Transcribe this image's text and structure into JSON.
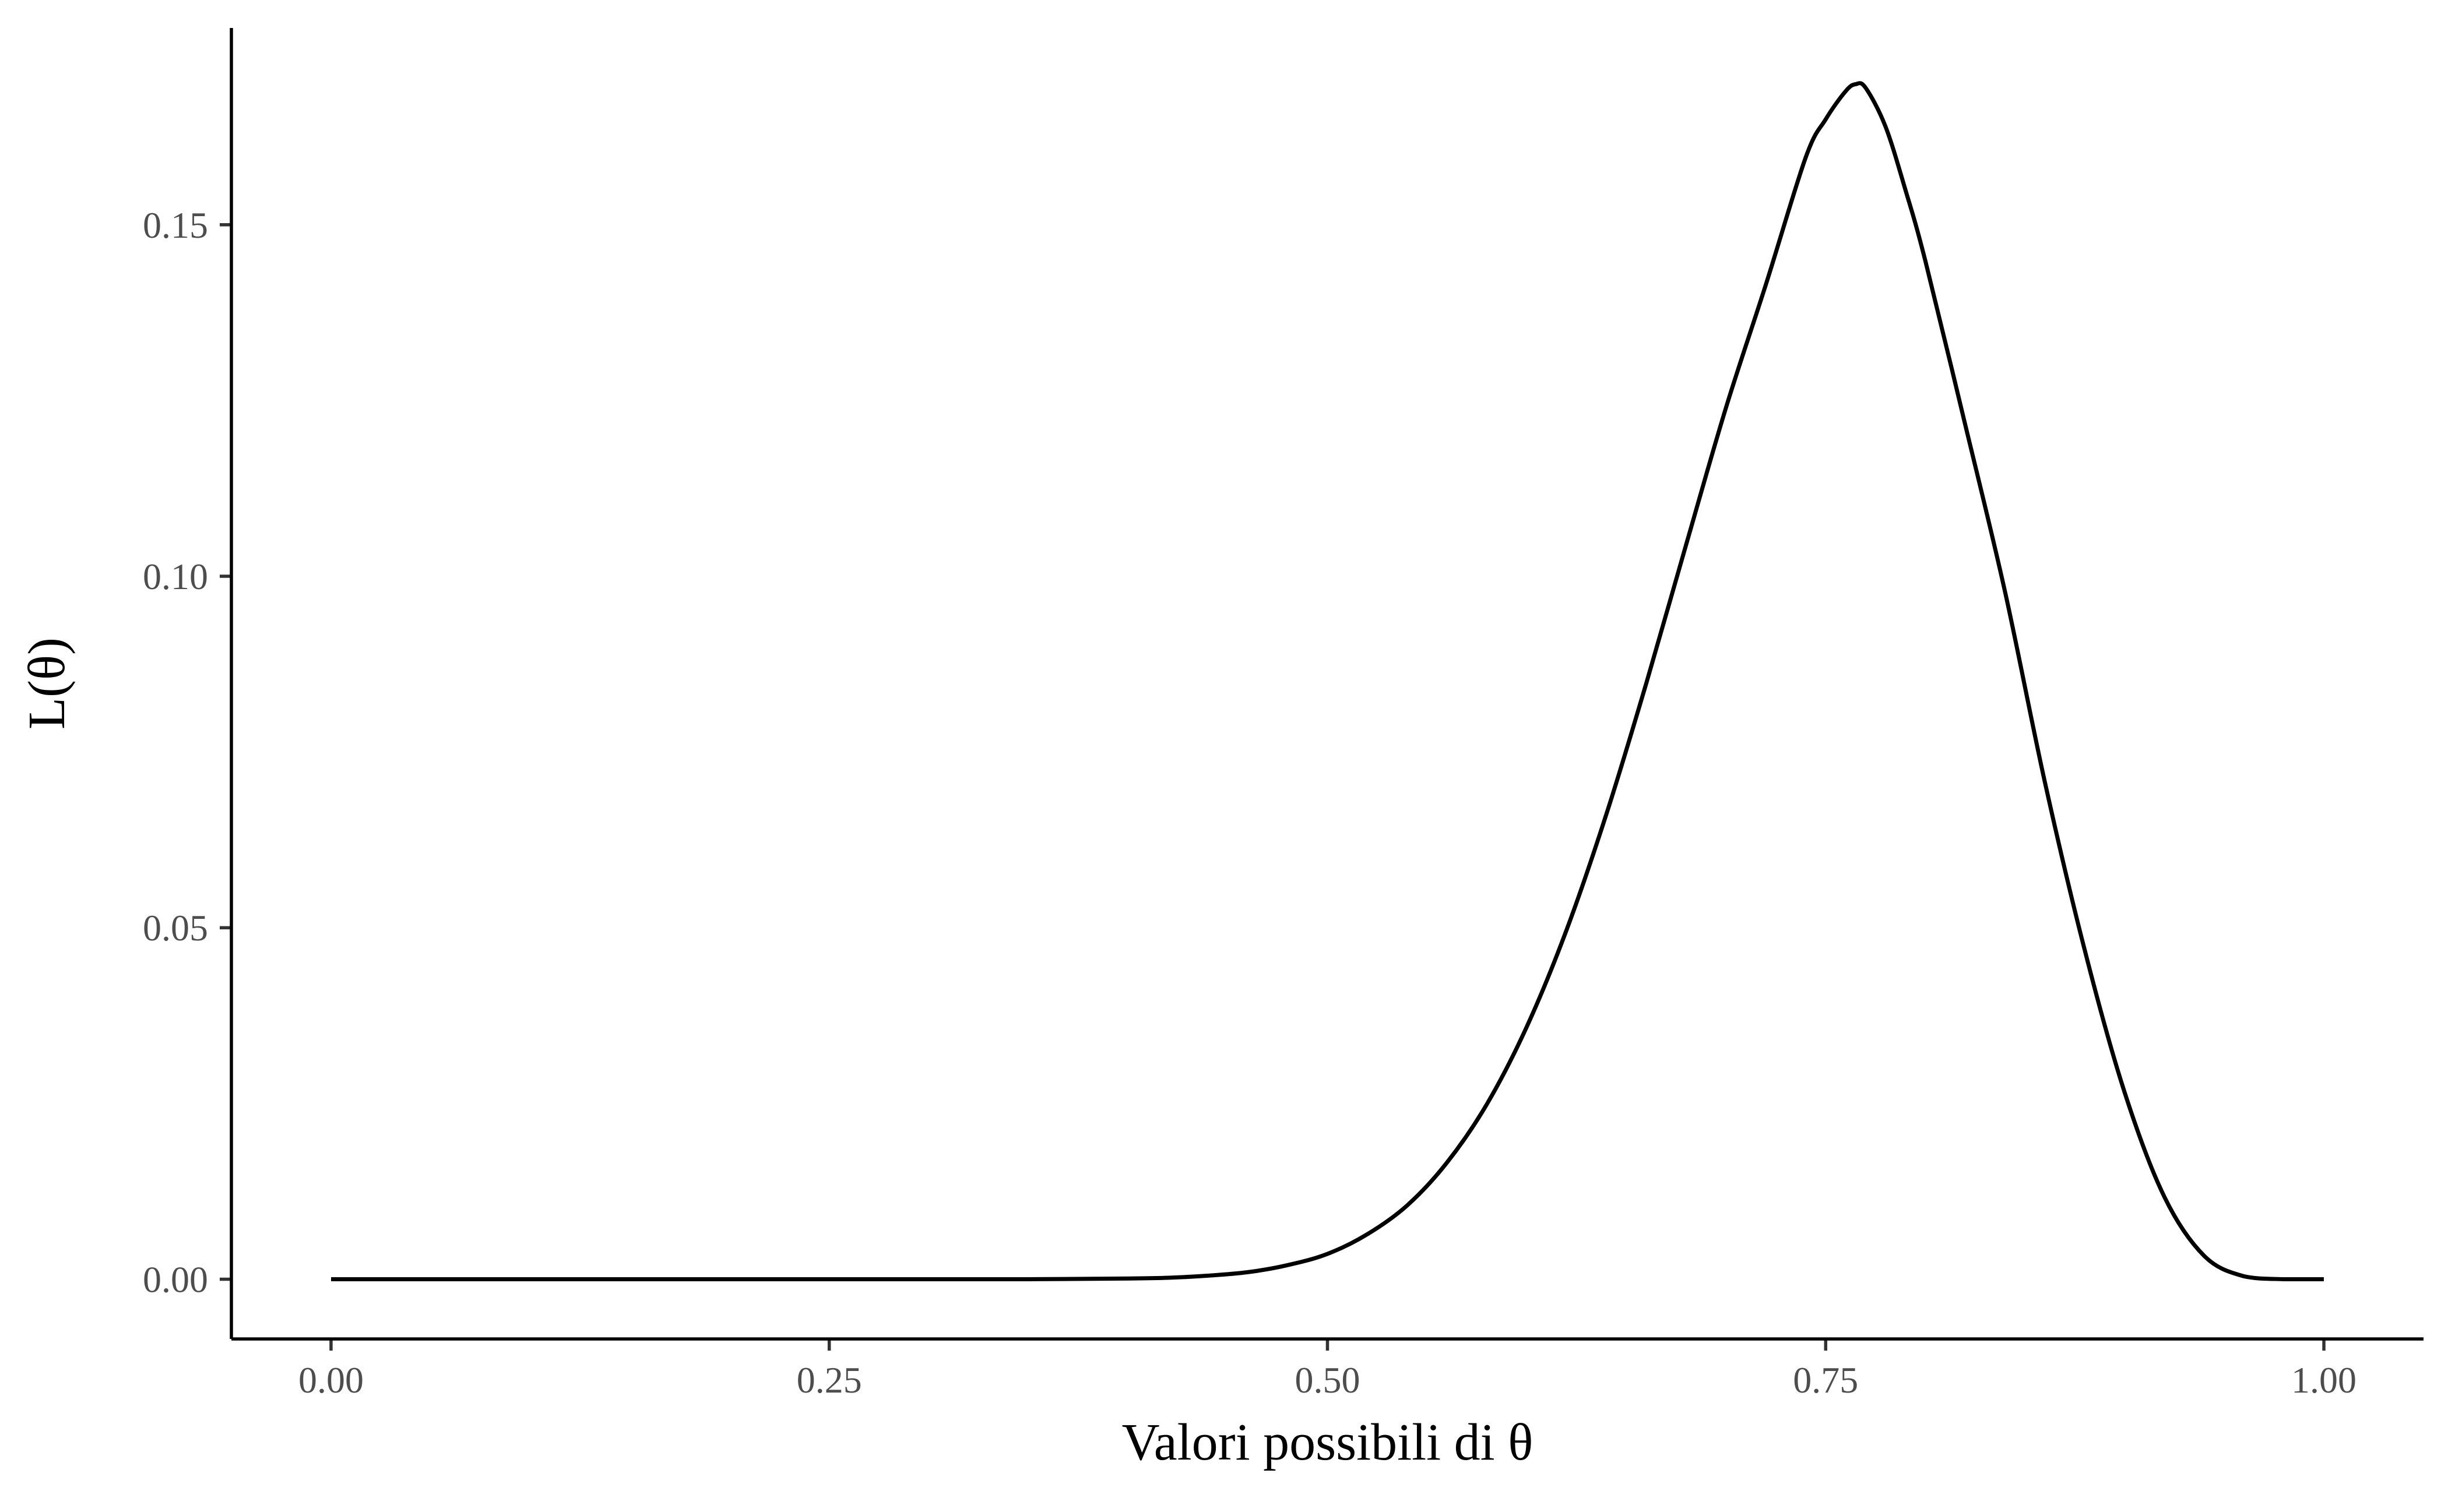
{
  "chart_data": {
    "type": "line",
    "title": "",
    "xlabel": "Valori possibili di θ",
    "ylabel": "L(θ)",
    "xlim": [
      -0.05,
      1.05
    ],
    "ylim": [
      -0.0085,
      0.178
    ],
    "x_ticks": [
      0,
      0.25,
      0.5,
      0.75,
      1
    ],
    "x_tick_labels": [
      "0.00",
      "0.25",
      "0.50",
      "0.75",
      "1.00"
    ],
    "y_ticks": [
      0,
      0.05,
      0.1,
      0.15
    ],
    "y_tick_labels": [
      "0.00",
      "0.05",
      "0.10",
      "0.15"
    ],
    "grid": false,
    "legend": "none",
    "line_color": "#000000",
    "series": [
      {
        "x": [
          0.0,
          0.05,
          0.1,
          0.15,
          0.2,
          0.25,
          0.3,
          0.35,
          0.4,
          0.42,
          0.44,
          0.46,
          0.48,
          0.5,
          0.52,
          0.54,
          0.56,
          0.58,
          0.6,
          0.62,
          0.64,
          0.66,
          0.68,
          0.7,
          0.72,
          0.74,
          0.75,
          0.76,
          0.765,
          0.77,
          0.78,
          0.79,
          0.8,
          0.82,
          0.84,
          0.86,
          0.88,
          0.9,
          0.92,
          0.94,
          0.96,
          0.98,
          1.0
        ],
        "y": [
          0.0,
          0.0,
          0.0,
          0.0,
          0.0,
          0.0,
          0.0,
          0.0,
          0.0001,
          0.0002,
          0.0005,
          0.001,
          0.002,
          0.0036,
          0.0064,
          0.0105,
          0.0166,
          0.0249,
          0.0359,
          0.0497,
          0.0662,
          0.0848,
          0.1045,
          0.124,
          0.1415,
          0.1596,
          0.165,
          0.169,
          0.17,
          0.1695,
          0.164,
          0.155,
          0.1449,
          0.1216,
          0.0978,
          0.0707,
          0.0468,
          0.0266,
          0.0117,
          0.0033,
          0.0004,
          0.0,
          0.0
        ]
      }
    ]
  }
}
